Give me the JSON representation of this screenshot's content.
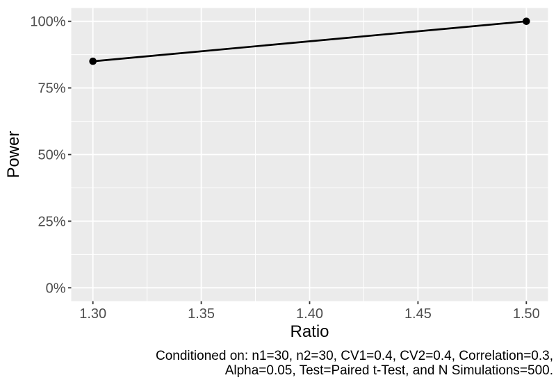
{
  "window": {
    "background": "#FFFFFF"
  },
  "chart_data": {
    "type": "line",
    "title": "",
    "xlabel": "Ratio",
    "ylabel": "Power",
    "y_unit": "%",
    "series": [
      {
        "name": "Power",
        "color": "#000000",
        "points": [
          {
            "x": 1.3,
            "y": 85
          },
          {
            "x": 1.5,
            "y": 100
          }
        ]
      }
    ],
    "x_ticks": [
      {
        "value": 1.3,
        "label": "1.30"
      },
      {
        "value": 1.35,
        "label": "1.35"
      },
      {
        "value": 1.4,
        "label": "1.40"
      },
      {
        "value": 1.45,
        "label": "1.45"
      },
      {
        "value": 1.5,
        "label": "1.50"
      }
    ],
    "y_ticks": [
      {
        "value": 0,
        "label": "0%"
      },
      {
        "value": 25,
        "label": "25%"
      },
      {
        "value": 50,
        "label": "50%"
      },
      {
        "value": 75,
        "label": "75%"
      },
      {
        "value": 100,
        "label": "100%"
      }
    ],
    "xlim": [
      1.29,
      1.51
    ],
    "ylim": [
      -5,
      105
    ],
    "grid": {
      "major": true,
      "minor": true
    },
    "legend_position": "none",
    "caption": {
      "line1": "Conditioned on: n1=30, n2=30, CV1=0.4, CV2=0.4, Correlation=0.3,",
      "line2": "Alpha=0.05, Test=Paired t-Test, and N Simulations=500."
    },
    "style": {
      "panel_bg": "#EBEBEB",
      "grid_color": "#FFFFFF",
      "tick_mark_color": "#333333",
      "tick_label_color": "#4D4D4D",
      "text_color": "#000000"
    }
  }
}
